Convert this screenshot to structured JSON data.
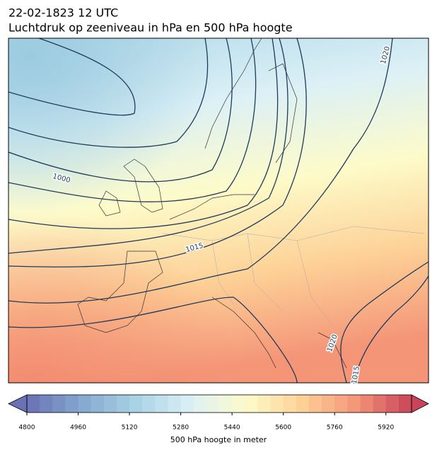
{
  "header": {
    "title_line1": "22-02-1823 12 UTC",
    "title_line2": "Luchtdruk op zeeniveau in hPa en 500 hPa hoogte"
  },
  "contour_labels": [
    "1000",
    "1015",
    "1020",
    "1020",
    "1015"
  ],
  "colorbar": {
    "range": [
      4800,
      6000
    ],
    "ticks": [
      4800,
      4960,
      5120,
      5280,
      5440,
      5600,
      5760,
      5920
    ],
    "label": "500 hPa hoogte in meter"
  }
}
